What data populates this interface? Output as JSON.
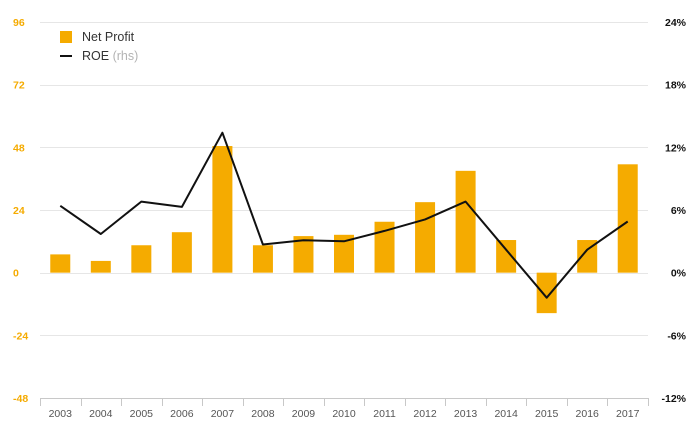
{
  "chart_data": {
    "type": "bar",
    "categories": [
      "2003",
      "2004",
      "2005",
      "2006",
      "2007",
      "2008",
      "2009",
      "2010",
      "2011",
      "2012",
      "2013",
      "2014",
      "2015",
      "2016",
      "2017"
    ],
    "series": [
      {
        "name": "Net Profit",
        "type": "bar",
        "axis": "left",
        "color": "#f5ab00",
        "values": [
          7,
          4.5,
          10.5,
          15.5,
          48.5,
          10.5,
          14,
          14.5,
          19.5,
          27,
          39,
          12.5,
          -15.5,
          12.5,
          41.5
        ]
      },
      {
        "name": "ROE",
        "name_suffix": "(rhs)",
        "type": "line",
        "axis": "right",
        "color": "#111111",
        "values": [
          6.4,
          3.7,
          6.8,
          6.3,
          13.4,
          2.7,
          3.1,
          3.0,
          4.0,
          5.1,
          6.8,
          2.2,
          -2.4,
          2.2,
          4.9
        ]
      }
    ],
    "left_axis": {
      "ylim": [
        -48,
        96
      ],
      "ticks": [
        -48,
        -24,
        0,
        24,
        48,
        72,
        96
      ],
      "tick_labels": [
        "-48",
        "-24",
        "0",
        "24",
        "48",
        "72",
        "96"
      ],
      "color": "#f5ab00"
    },
    "right_axis": {
      "ylim": [
        -12,
        24
      ],
      "ticks": [
        -12,
        -6,
        0,
        6,
        12,
        18,
        24
      ],
      "tick_labels": [
        "-12%",
        "-6%",
        "0%",
        "6%",
        "12%",
        "18%",
        "24%"
      ],
      "color": "#111111"
    },
    "grid": true,
    "legend_position": "top-left"
  }
}
